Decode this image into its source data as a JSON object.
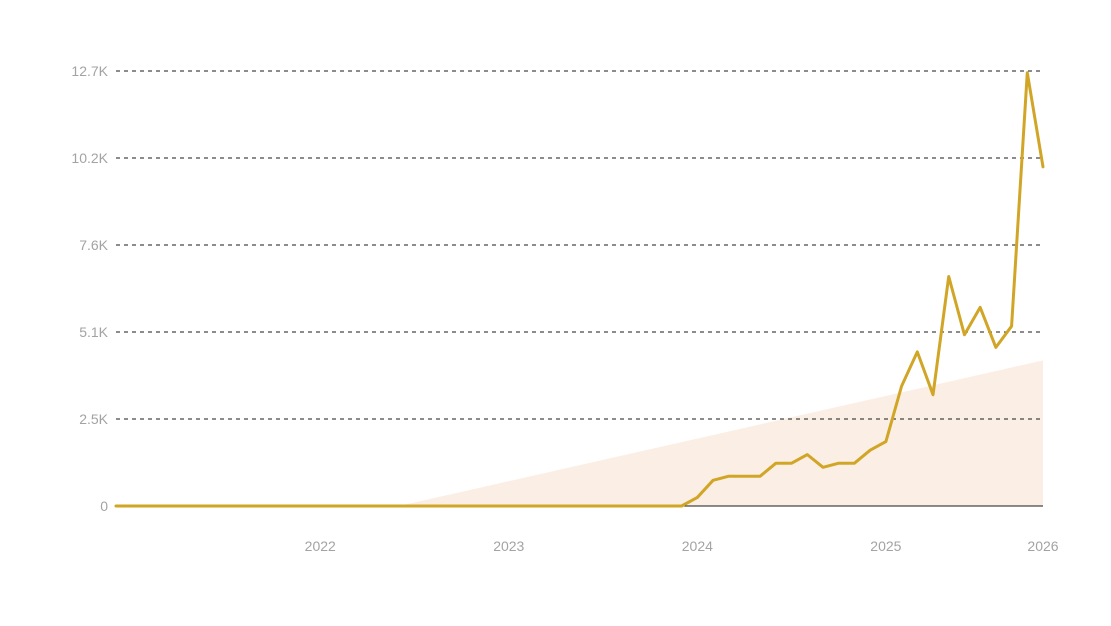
{
  "chart_data": {
    "type": "line",
    "title": "",
    "xlabel": "",
    "ylabel": "",
    "x_ticks": [
      "2022",
      "2023",
      "2024",
      "2025",
      "2026"
    ],
    "y_ticks": [
      "0",
      "2.5K",
      "5.1K",
      "7.6K",
      "10.2K",
      "12.7K"
    ],
    "y_tick_values": [
      0,
      2540,
      5080,
      7620,
      10160,
      12700
    ],
    "ylim": [
      0,
      12700
    ],
    "xlim": [
      "2021-06",
      "2026-05"
    ],
    "grid": "horizontal-dashed",
    "legend": "none",
    "colors": {
      "line": "#d1a526",
      "area": "#fbeee4",
      "grid": "#1a1a1a",
      "tick_text": "#a3a3a3"
    },
    "series": [
      {
        "values": [
          {
            "x": "2021-06",
            "y": 0
          },
          {
            "x": "2022-12",
            "y": 0
          },
          {
            "x": "2024-06",
            "y": 0
          },
          {
            "x": "2024-07",
            "y": 250
          },
          {
            "x": "2024-08",
            "y": 750
          },
          {
            "x": "2024-09",
            "y": 870
          },
          {
            "x": "2024-10",
            "y": 870
          },
          {
            "x": "2024-11",
            "y": 870
          },
          {
            "x": "2024-12",
            "y": 1250
          },
          {
            "x": "2025-01",
            "y": 1250
          },
          {
            "x": "2025-02",
            "y": 1500
          },
          {
            "x": "2025-03",
            "y": 1130
          },
          {
            "x": "2025-04",
            "y": 1250
          },
          {
            "x": "2025-05",
            "y": 1250
          },
          {
            "x": "2025-06",
            "y": 1630
          },
          {
            "x": "2025-07",
            "y": 1880
          },
          {
            "x": "2025-08",
            "y": 3500
          },
          {
            "x": "2025-09",
            "y": 4500
          },
          {
            "x": "2025-10",
            "y": 3250
          },
          {
            "x": "2025-11",
            "y": 6700
          },
          {
            "x": "2025-12",
            "y": 5000
          },
          {
            "x": "2026-01",
            "y": 5800
          },
          {
            "x": "2026-02",
            "y": 4630
          },
          {
            "x": "2026-03",
            "y": 5250
          },
          {
            "x": "2026-04",
            "y": 12650
          },
          {
            "x": "2026-05",
            "y": 9900
          }
        ]
      },
      {
        "type": "area",
        "values": [
          {
            "x": "2022-12",
            "y": 0
          },
          {
            "x": "2026-05",
            "y": 4250
          }
        ]
      }
    ]
  }
}
